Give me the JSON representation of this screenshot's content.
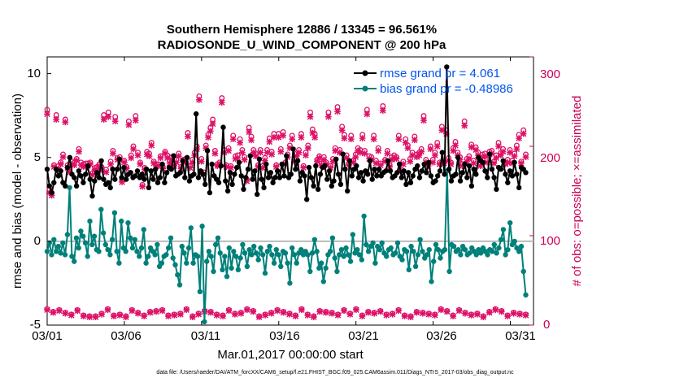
{
  "chart_data": {
    "type": "line",
    "title": "Southern Hemisphere 12886 / 13345 = 96.561%",
    "subtitle": "RADIOSONDE_U_WIND_COMPONENT @ 200 hPa",
    "xlabel": "Mar.01,2017 00:00:00 start",
    "ylabel": "rmse and bias (model - observation)",
    "ylabel_right": "# of obs: o=possible; ×=assimilated",
    "xticks": [
      "03/01",
      "03/06",
      "03/11",
      "03/16",
      "03/21",
      "03/26",
      "03/31"
    ],
    "xlim": [
      0,
      31.5
    ],
    "ylim": [
      -5,
      11
    ],
    "yticks": [
      "-5",
      "0",
      "5",
      "10"
    ],
    "ylim_right": [
      0,
      300
    ],
    "yticks_right": [
      "0",
      "100",
      "200",
      "300"
    ],
    "footnote": "data file: /Users/raeder/DAI/ATM_forcXX/CAM6_setup/f.e21.FHIST_BGC.f09_025.CAM6assim.011/Diags_NTrS_2017-03/obs_diag_output.nc",
    "series": [
      {
        "name": "rmse grand pr = 4.061",
        "color": "#000000",
        "values": [
          4.3,
          3.3,
          2.9,
          3.5,
          4.3,
          3.9,
          4.2,
          3.5,
          3.3,
          4.4,
          5.0,
          4.0,
          3.8,
          3.3,
          4.2,
          3.9,
          3.5,
          4.0,
          4.5,
          3.7,
          2.7,
          3.6,
          4.1,
          3.8,
          4.8,
          3.7,
          3.4,
          3.5,
          3.2,
          4.3,
          3.7,
          4.3,
          4.9,
          3.8,
          4.4,
          3.7,
          4.0,
          4.1,
          3.8,
          3.9,
          4.2,
          3.8,
          4.0,
          3.7,
          4.3,
          3.2,
          4.2,
          3.7,
          4.3,
          3.5,
          3.8,
          4.6,
          3.5,
          4.1,
          4.4,
          4.3,
          5.1,
          3.9,
          4.0,
          4.1,
          4.8,
          3.8,
          5.0,
          3.6,
          3.9,
          4.0,
          7.6,
          3.8,
          4.2,
          4.0,
          3.4,
          5.4,
          2.9,
          4.6,
          3.9,
          3.7,
          3.5,
          4.5,
          6.8,
          3.6,
          3.0,
          4.1,
          3.4,
          4.0,
          4.4,
          4.7,
          3.9,
          3.1,
          3.8,
          4.3,
          5.1,
          3.7,
          4.2,
          2.8,
          4.9,
          3.7,
          3.2,
          4.6,
          3.8,
          4.1,
          3.5,
          3.8,
          4.2,
          3.8,
          4.6,
          3.9,
          5.1,
          3.8,
          4.0,
          5.5,
          4.3,
          4.8,
          3.6,
          4.1,
          3.9,
          2.5,
          4.4,
          3.8,
          3.3,
          4.5,
          3.1,
          4.0,
          4.4,
          4.5,
          3.7,
          4.2,
          3.3,
          3.6,
          4.9,
          4.0,
          3.4,
          5.2,
          4.3,
          3.0,
          4.8,
          3.9,
          4.3,
          4.5,
          3.8,
          4.1,
          3.6,
          4.2,
          4.0,
          4.8,
          3.7,
          4.3,
          3.9,
          4.3,
          3.9,
          4.1,
          4.2,
          4.8,
          4.2,
          3.8,
          3.9,
          4.1,
          4.6,
          3.8,
          4.2,
          3.4,
          4.1,
          3.5,
          3.9,
          4.3,
          4.5,
          3.8,
          4.2,
          4.6,
          4.1,
          4.7,
          3.9,
          3.5,
          3.6,
          3.9,
          4.2,
          5.3,
          4.0,
          10.4,
          4.3,
          3.6,
          3.9,
          4.0,
          5.0,
          3.6,
          4.1,
          4.6,
          3.8,
          4.5,
          3.3,
          4.3,
          4.0,
          5.0,
          4.8,
          4.7,
          4.2,
          3.8,
          5.2,
          4.3,
          3.8,
          3.1,
          4.4,
          4.3,
          4.8,
          4.0,
          3.5,
          4.2,
          3.9,
          4.7,
          4.0,
          3.2,
          4.4,
          4.3,
          4.1
        ]
      },
      {
        "name": "bias grand pr = -0.48986",
        "color": "#00807a",
        "values": [
          -0.6,
          -0.1,
          -0.8,
          0.1,
          -0.6,
          -0.3,
          -0.7,
          -0.1,
          -0.8,
          0.4,
          3.2,
          -0.9,
          -1.2,
          0.2,
          -0.4,
          0.6,
          0.3,
          -0.1,
          -0.9,
          1.2,
          -0.2,
          0.3,
          -0.5,
          -0.6,
          1.9,
          0.5,
          -0.2,
          -0.5,
          -0.8,
          0.1,
          1.7,
          -0.6,
          -1.3,
          1.2,
          -0.4,
          -0.6,
          1.1,
          0.2,
          -0.4,
          0.1,
          -0.6,
          -0.9,
          -0.4,
          0.7,
          -1.3,
          -0.9,
          -0.4,
          -0.6,
          -0.8,
          -0.2,
          -1.5,
          -1.3,
          -0.9,
          -0.8,
          -0.4,
          0.2,
          -1.0,
          -1.4,
          -2.0,
          -2.6,
          -0.3,
          -0.7,
          -1.3,
          -0.4,
          0.8,
          -1.3,
          -0.8,
          -0.9,
          -3.0,
          0.9,
          -4.8,
          -1.2,
          -0.6,
          -0.9,
          -1.8,
          -0.2,
          0.2,
          -0.7,
          -1.7,
          -0.9,
          -2.1,
          -0.4,
          -1.6,
          -0.6,
          -0.9,
          -1.7,
          -1.0,
          -0.2,
          -0.7,
          -1.5,
          -0.5,
          -0.8,
          -0.3,
          -0.7,
          -1.1,
          -0.4,
          -0.8,
          -1.9,
          -0.6,
          -0.3,
          -0.8,
          -1.3,
          -0.5,
          -0.8,
          -1.5,
          -0.6,
          -0.7,
          -1.3,
          -2.5,
          -0.4,
          -0.8,
          -1.3,
          -0.7,
          -0.5,
          -0.8,
          -0.6,
          -0.8,
          -1.8,
          -0.7,
          0.1,
          -0.6,
          -1.6,
          -1.3,
          -2.4,
          -1.6,
          -0.8,
          -0.6,
          0.2,
          -1.0,
          -1.8,
          -0.8,
          -0.5,
          -0.9,
          -0.4,
          -0.8,
          -1.2,
          0.4,
          -0.7,
          -0.5,
          -0.8,
          -1.1,
          1.5,
          -0.2,
          -0.6,
          -0.3,
          -0.1,
          -1.3,
          -0.3,
          -0.5,
          -0.1,
          -0.7,
          -0.9,
          -0.5,
          -0.4,
          -0.8,
          -0.7,
          -0.1,
          -0.9,
          -1.1,
          -0.5,
          -0.6,
          -1.7,
          -0.3,
          -0.6,
          -1.5,
          -0.8,
          0.1,
          -0.6,
          -1.0,
          -0.8,
          -0.5,
          -2.4,
          -1.2,
          -0.2,
          -0.5,
          -1.0,
          -0.6,
          -0.5,
          4.2,
          -1.8,
          -0.2,
          -0.3,
          -0.6,
          -0.5,
          -0.8,
          -0.3,
          -0.5,
          -0.8,
          -0.7,
          -0.4,
          -0.6,
          -0.8,
          -0.5,
          -0.7,
          -0.4,
          -0.6,
          -0.8,
          -0.5,
          -0.6,
          -0.2,
          -0.7,
          -0.4,
          0.1,
          0.7,
          -0.8,
          -0.5,
          1.1,
          -0.2,
          0.0,
          -0.4,
          -0.6,
          -0.3,
          -1.8,
          -3.2
        ]
      }
    ],
    "obs_possible": [
      241,
      152,
      148,
      179,
      235,
      178,
      182,
      191,
      230,
      179,
      175,
      183,
      182,
      186,
      197,
      182,
      180,
      181,
      181,
      182,
      170,
      176,
      177,
      180,
      177,
      235,
      174,
      238,
      183,
      195,
      233,
      187,
      188,
      162,
      184,
      177,
      228,
      190,
      200,
      234,
      193,
      182,
      157,
      176,
      194,
      192,
      204,
      183,
      180,
      180,
      189,
      177,
      194,
      190,
      184,
      188,
      180,
      185,
      192,
      177,
      185,
      186,
      215,
      178,
      185,
      193,
      200,
      256,
      186,
      171,
      201,
      213,
      221,
      230,
      195,
      180,
      182,
      254,
      196,
      179,
      198,
      178,
      212,
      189,
      190,
      208,
      196,
      188,
      163,
      221,
      211,
      196,
      192,
      179,
      196,
      178,
      187,
      196,
      209,
      194,
      214,
      179,
      214,
      197,
      216,
      182,
      191,
      201,
      212,
      186,
      192,
      196,
      214,
      178,
      193,
      201,
      238,
      219,
      214,
      185,
      189,
      181,
      188,
      182,
      238,
      178,
      186,
      198,
      244,
      196,
      222,
      213,
      190,
      181,
      212,
      184,
      191,
      198,
      196,
      213,
      195,
      241,
      189,
      188,
      212,
      184,
      198,
      181,
      245,
      185,
      195,
      179,
      188,
      190,
      188,
      212,
      174,
      183,
      208,
      201,
      186,
      193,
      211,
      191,
      193,
      197,
      234,
      185,
      180,
      200,
      185,
      193,
      204,
      182,
      222,
      183,
      218,
      187,
      182,
      198,
      205,
      193,
      188,
      180,
      228,
      186,
      189,
      202,
      184,
      199,
      193,
      180,
      191,
      192,
      185,
      194,
      195,
      183,
      190,
      204,
      193,
      197,
      182,
      185,
      196,
      184,
      192,
      201,
      213,
      183,
      218,
      191
    ],
    "obs_assimilated": [
      236,
      148,
      145,
      177,
      230,
      175,
      180,
      188,
      227,
      176,
      171,
      180,
      179,
      184,
      194,
      179,
      177,
      178,
      178,
      180,
      168,
      174,
      174,
      178,
      174,
      230,
      171,
      233,
      180,
      192,
      228,
      185,
      185,
      160,
      182,
      175,
      224,
      187,
      197,
      229,
      190,
      180,
      155,
      174,
      191,
      189,
      201,
      181,
      178,
      178,
      187,
      175,
      192,
      187,
      181,
      185,
      178,
      182,
      189,
      175,
      182,
      183,
      211,
      176,
      182,
      190,
      197,
      252,
      183,
      169,
      198,
      210,
      217,
      225,
      192,
      178,
      180,
      249,
      193,
      177,
      195,
      176,
      208,
      186,
      187,
      204,
      193,
      185,
      161,
      216,
      207,
      193,
      189,
      177,
      193,
      176,
      184,
      193,
      205,
      191,
      210,
      177,
      210,
      194,
      212,
      180,
      188,
      198,
      208,
      183,
      189,
      193,
      210,
      176,
      190,
      198,
      233,
      215,
      210,
      183,
      187,
      179,
      185,
      180,
      233,
      176,
      183,
      195,
      239,
      193,
      218,
      209,
      187,
      179,
      208,
      182,
      188,
      195,
      193,
      209,
      192,
      236,
      186,
      185,
      208,
      181,
      195,
      179,
      240,
      183,
      192,
      177,
      185,
      187,
      186,
      208,
      172,
      180,
      204,
      198,
      183,
      190,
      207,
      188,
      190,
      194,
      229,
      182,
      178,
      197,
      182,
      190,
      200,
      180,
      218,
      181,
      214,
      184,
      180,
      195,
      201,
      190,
      185,
      178,
      223,
      183,
      186,
      199,
      181,
      196,
      190,
      178,
      188,
      189,
      182,
      191,
      192,
      181,
      187,
      200,
      190,
      194,
      180,
      182,
      193,
      181,
      189,
      197,
      209,
      181,
      214,
      188
    ],
    "low_obs_possible": [
      18,
      15,
      17,
      14,
      12,
      17,
      11,
      10,
      10,
      13,
      18,
      11,
      12,
      10,
      17,
      14,
      11,
      15,
      16,
      17,
      11,
      12,
      13,
      18,
      10,
      13,
      16,
      15,
      12,
      11,
      17,
      13,
      14,
      18,
      16,
      10,
      12,
      14,
      17,
      15,
      13,
      11,
      18,
      12,
      10,
      16,
      15,
      14,
      12,
      17,
      13,
      18,
      11,
      15,
      14,
      16,
      12,
      13,
      17,
      11,
      10,
      15,
      14,
      13,
      12,
      18,
      16,
      11,
      17,
      14,
      12,
      13,
      10,
      15,
      18,
      16,
      11,
      14,
      13,
      12
    ],
    "low_obs_assimilated": [
      17,
      14,
      16,
      13,
      11,
      16,
      10,
      9,
      9,
      12,
      17,
      10,
      11,
      9,
      16,
      13,
      10,
      14,
      15,
      16,
      10,
      11,
      12,
      17,
      9,
      12,
      15,
      14,
      11,
      10,
      16,
      12,
      13,
      17,
      15,
      9,
      11,
      13,
      16,
      14,
      12,
      10,
      17,
      11,
      9,
      15,
      14,
      13,
      11,
      16,
      12,
      17,
      10,
      14,
      13,
      15,
      11,
      12,
      16,
      10,
      9,
      14,
      13,
      12,
      11,
      17,
      15,
      10,
      16,
      13,
      11,
      12,
      9,
      14,
      17,
      15,
      10,
      13,
      12,
      11
    ]
  }
}
